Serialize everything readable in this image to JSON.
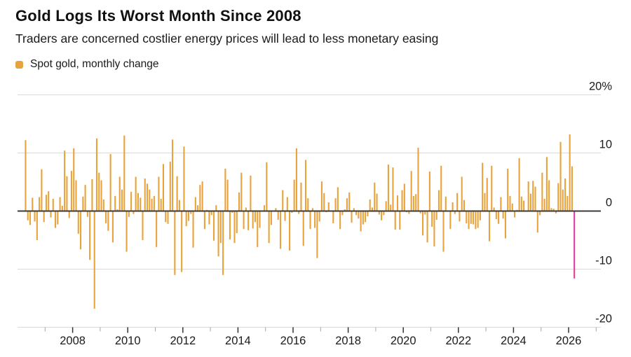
{
  "header": {
    "title": "Gold Logs Its Worst Month Since 2008",
    "subtitle": "Traders are concerned costlier energy prices will lead to less monetary easing"
  },
  "legend": {
    "label": "Spot gold, monthly change"
  },
  "colors": {
    "bar": "#E8A33C",
    "highlight": "#E03C9B",
    "grid": "#D9D9D9",
    "zero_line": "#3A3A3A",
    "tick_major": "#333333",
    "tick_minor": "#A6A6A6",
    "text": "#1B1B1B"
  },
  "chart_data": {
    "type": "bar",
    "title": "Gold Logs Its Worst Month Since 2008",
    "series_name": "Spot gold, monthly change",
    "unit": "%",
    "frequency": "monthly",
    "start_month": "2006-04",
    "end_month": "2026-03",
    "ylim": [
      -20,
      20
    ],
    "grid": true,
    "y_axis_side": "right",
    "y_ticks": [
      {
        "value": 20,
        "label": "20%"
      },
      {
        "value": 10,
        "label": "10"
      },
      {
        "value": 0,
        "label": "0"
      },
      {
        "value": -10,
        "label": "-10"
      },
      {
        "value": -20,
        "label": "-20"
      }
    ],
    "x_tick_labels": [
      "2008",
      "2010",
      "2012",
      "2014",
      "2016",
      "2018",
      "2020",
      "2022",
      "2024",
      "2026"
    ],
    "highlight": {
      "month": "2026-03",
      "value": -11.6,
      "color": "#E03C9B",
      "note": "worst month since 2008"
    },
    "values": [
      12.2,
      -1.6,
      -2.4,
      2.3,
      -1.8,
      -5.0,
      2.4,
      7.2,
      -1.9,
      2.8,
      3.4,
      -1.1,
      2.1,
      -2.9,
      -2.3,
      2.4,
      0.9,
      10.4,
      6.0,
      -1.2,
      6.9,
      10.8,
      5.3,
      -3.9,
      -6.6,
      2.5,
      4.5,
      -1.0,
      -8.4,
      5.5,
      -16.8,
      12.5,
      6.6,
      5.3,
      2.0,
      -2.1,
      -3.4,
      9.8,
      -5.4,
      2.6,
      0.3,
      5.9,
      3.7,
      13.0,
      -7.0,
      -1.0,
      3.3,
      -0.5,
      5.9,
      3.1,
      2.3,
      -5.0,
      5.6,
      4.7,
      3.7,
      2.1,
      2.6,
      -6.2,
      5.9,
      2.1,
      8.1,
      -1.9,
      -2.2,
      8.5,
      12.3,
      -11.0,
      6.0,
      1.9,
      -10.5,
      11.1,
      -2.6,
      -1.7,
      -0.5,
      -6.3,
      2.4,
      1.0,
      4.5,
      5.1,
      -3.1,
      0.2,
      -2.3,
      -0.7,
      -5.1,
      1.0,
      -7.8,
      -5.5,
      -11.0,
      7.3,
      5.4,
      -4.9,
      -0.3,
      -5.5,
      -3.8,
      3.2,
      6.6,
      -3.1,
      0.6,
      -3.3,
      6.1,
      -3.0,
      -1.9,
      -6.2,
      -2.9,
      0.1,
      1.0,
      8.4,
      -5.5,
      -2.4,
      -0.1,
      0.5,
      -1.5,
      -6.5,
      3.6,
      -1.7,
      2.4,
      -6.8,
      -0.3,
      5.4,
      10.8,
      -0.5,
      4.9,
      -6.0,
      8.8,
      2.2,
      -3.1,
      0.5,
      -2.9,
      -8.1,
      -1.8,
      5.1,
      3.1,
      -0.2,
      1.5,
      0.1,
      -2.1,
      2.2,
      4.1,
      -3.1,
      -0.7,
      0.3,
      2.2,
      3.2,
      -2.0,
      0.5,
      -0.7,
      -1.3,
      -3.5,
      -2.3,
      -1.9,
      -0.9,
      2.0,
      0.6,
      4.9,
      3.0,
      -0.6,
      -1.6,
      -0.7,
      1.7,
      8.0,
      1.1,
      7.5,
      -3.2,
      2.7,
      -3.2,
      3.6,
      4.7,
      -0.2,
      -0.5,
      6.9,
      2.6,
      2.9,
      10.9,
      -0.4,
      -4.2,
      -0.6,
      -5.4,
      6.8,
      -2.7,
      -6.1,
      -1.5,
      3.6,
      7.8,
      -7.0,
      2.5,
      0.0,
      -3.1,
      1.5,
      -0.5,
      3.1,
      -1.8,
      5.9,
      1.9,
      -2.1,
      -3.1,
      -2.2,
      -2.3,
      -3.1,
      -2.9,
      -1.6,
      8.3,
      3.1,
      5.7,
      -5.2,
      7.8,
      0.6,
      -1.4,
      -2.2,
      2.4,
      -1.3,
      -4.7,
      7.3,
      2.6,
      1.3,
      -1.1,
      0.2,
      9.1,
      2.5,
      1.8,
      0.0,
      5.1,
      3.0,
      5.2,
      4.2,
      -3.7,
      -0.7,
      6.6,
      2.1,
      9.3,
      5.3,
      0.5,
      0.4,
      -0.4,
      4.8,
      11.9,
      3.7,
      5.6,
      2.6,
      13.2,
      7.7,
      -11.6
    ]
  }
}
